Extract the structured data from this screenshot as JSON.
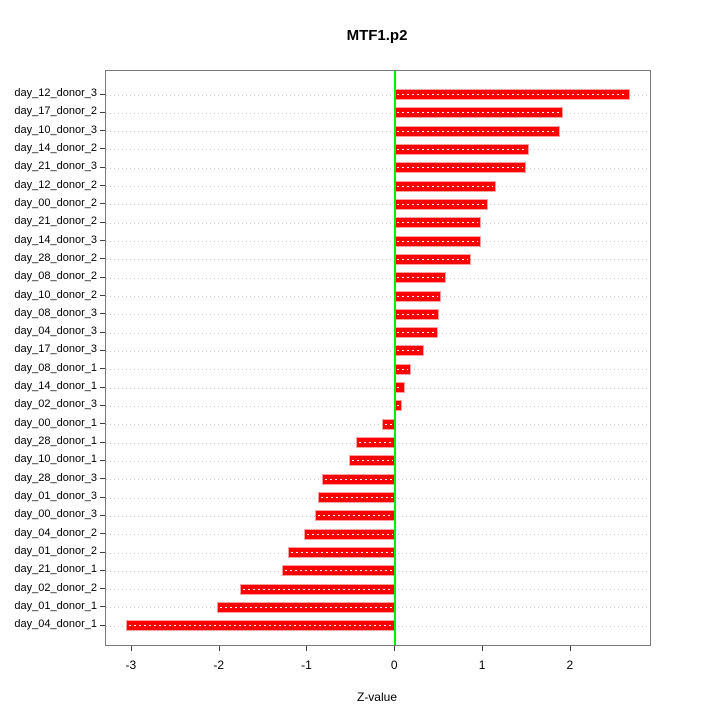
{
  "chart_data": {
    "type": "bar",
    "orientation": "horizontal",
    "title": "MTF1.p2",
    "xlabel": "Z-value",
    "ylabel": "",
    "categories": [
      "day_12_donor_3",
      "day_17_donor_2",
      "day_10_donor_3",
      "day_14_donor_2",
      "day_21_donor_3",
      "day_12_donor_2",
      "day_00_donor_2",
      "day_21_donor_2",
      "day_14_donor_3",
      "day_28_donor_2",
      "day_08_donor_2",
      "day_10_donor_2",
      "day_08_donor_3",
      "day_04_donor_3",
      "day_17_donor_3",
      "day_08_donor_1",
      "day_14_donor_1",
      "day_02_donor_3",
      "day_00_donor_1",
      "day_28_donor_1",
      "day_10_donor_1",
      "day_28_donor_3",
      "day_01_donor_3",
      "day_00_donor_3",
      "day_04_donor_2",
      "day_01_donor_2",
      "day_21_donor_1",
      "day_02_donor_2",
      "day_01_donor_1",
      "day_04_donor_1"
    ],
    "values": [
      2.66,
      1.9,
      1.87,
      1.51,
      1.48,
      1.14,
      1.05,
      0.97,
      0.96,
      0.85,
      0.57,
      0.51,
      0.49,
      0.48,
      0.32,
      0.17,
      0.1,
      0.06,
      -0.14,
      -0.44,
      -0.52,
      -0.82,
      -0.87,
      -0.9,
      -1.03,
      -1.21,
      -1.28,
      -1.76,
      -2.02,
      -3.06
    ],
    "xticks": [
      -3,
      -2,
      -1,
      0,
      1,
      2
    ],
    "xlim": [
      -3.295,
      2.902
    ],
    "grid": "dotted-horizontal",
    "legend": "none",
    "bar_color": "#ff0000",
    "zero_line_color": "#00ee00",
    "grid_color": "#c9c9c9",
    "box_color": "#7a7a7a"
  }
}
